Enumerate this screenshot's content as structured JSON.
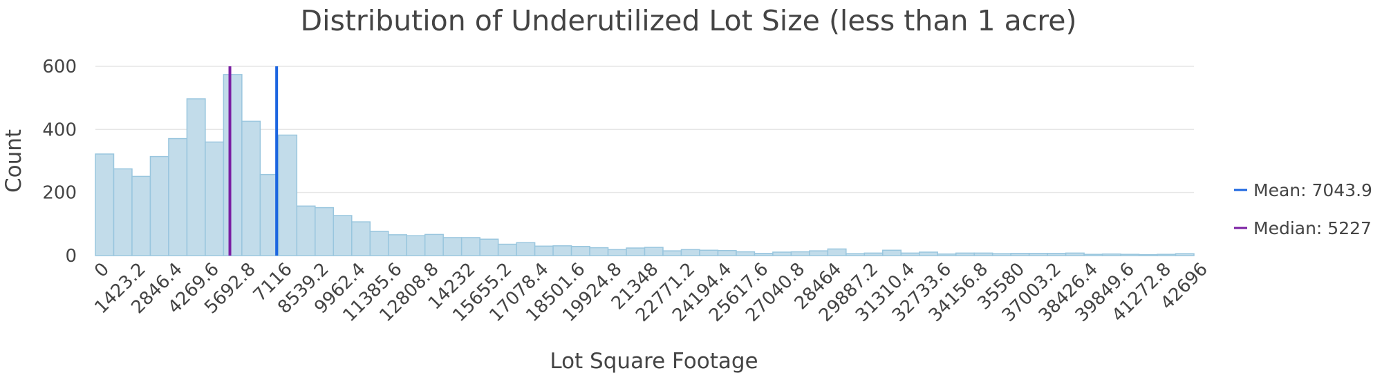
{
  "chart_data": {
    "type": "bar",
    "title": "Distribution of Underutilized Lot Size (less than 1 acre)",
    "xlabel": "Lot Square Footage",
    "ylabel": "Count",
    "bin_width": 711.6,
    "xlim": [
      0,
      42696
    ],
    "ylim": [
      0,
      600
    ],
    "x_tick_labels": [
      "0",
      "1423.2",
      "2846.4",
      "4269.6",
      "5692.8",
      "7116",
      "8539.2",
      "9962.4",
      "11385.6",
      "12808.8",
      "14232",
      "15655.2",
      "17078.4",
      "18501.6",
      "19924.8",
      "21348",
      "22771.2",
      "24194.4",
      "25617.6",
      "27040.8",
      "28464",
      "29887.2",
      "31310.4",
      "32733.6",
      "34156.8",
      "35580",
      "37003.2",
      "38426.4",
      "39849.6",
      "41272.8",
      "42696"
    ],
    "y_tick_labels": [
      "0",
      "200",
      "400",
      "600"
    ],
    "y_ticks": [
      0,
      200,
      400,
      600
    ],
    "grid": true,
    "legend_position": "right",
    "bar_fill": "#c2dcea",
    "bar_stroke": "#99c6de",
    "values": [
      322,
      275,
      251,
      314,
      371,
      497,
      360,
      574,
      426,
      257,
      382,
      157,
      152,
      127,
      107,
      77,
      66,
      63,
      67,
      57,
      57,
      52,
      36,
      41,
      30,
      31,
      29,
      25,
      19,
      24,
      26,
      15,
      19,
      17,
      16,
      12,
      7,
      11,
      12,
      15,
      21,
      6,
      8,
      17,
      8,
      11,
      5,
      8,
      8,
      6,
      7,
      7,
      7,
      8,
      4,
      5,
      4,
      3,
      4,
      6
    ],
    "reference_lines": [
      {
        "name": "Mean: 7043.9",
        "value": 7043.9,
        "color": "#1c66e0"
      },
      {
        "name": "Median: 5227",
        "value": 5227,
        "color": "#7a1fa2"
      }
    ]
  }
}
